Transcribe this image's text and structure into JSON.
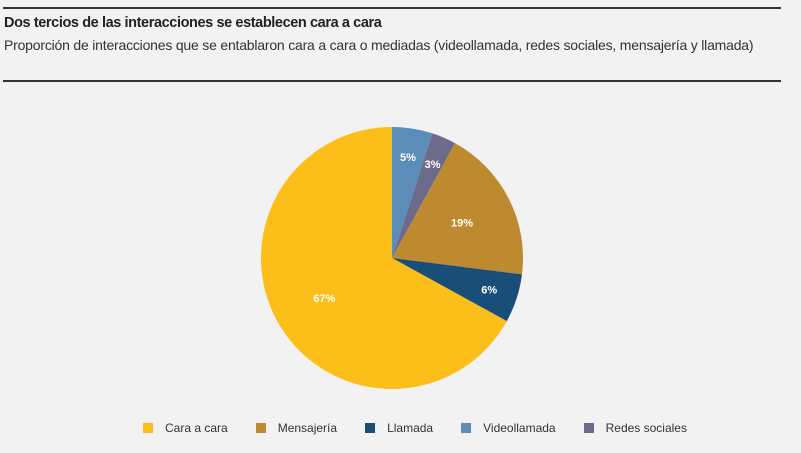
{
  "header": {
    "title": "Dos tercios de las interacciones se establecen cara a cara",
    "subtitle": "Proporción de interacciones que se entablaron cara a cara o mediadas (videollamada, redes sociales, mensajería y llamada)"
  },
  "chart_data": {
    "type": "pie",
    "start": "top, clockwise",
    "slices": [
      {
        "name": "Videollamada",
        "value": 5,
        "label": "5%",
        "color": "#5b8db8"
      },
      {
        "name": "Redes sociales",
        "value": 3,
        "label": "3%",
        "color": "#6d6b8c"
      },
      {
        "name": "Mensajería",
        "value": 19,
        "label": "19%",
        "color": "#bd8a30"
      },
      {
        "name": "Llamada",
        "value": 6,
        "label": "6%",
        "color": "#184e77"
      },
      {
        "name": "Cara a cara",
        "value": 67,
        "label": "67%",
        "color": "#fcbf1a"
      }
    ],
    "legend": {
      "placement": "bottom",
      "items": [
        "Cara a cara",
        "Mensajería",
        "Llamada",
        "Videollamada",
        "Redes sociales"
      ]
    }
  }
}
